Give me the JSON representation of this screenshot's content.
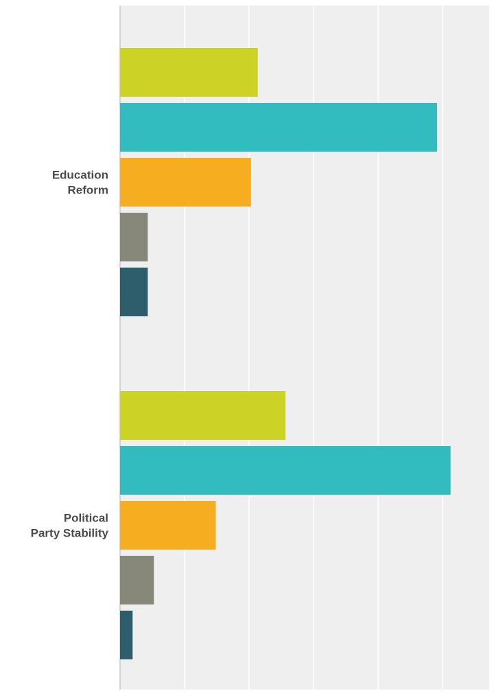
{
  "chart_data": {
    "type": "bar",
    "orientation": "horizontal",
    "title": "",
    "xlabel": "",
    "ylabel": "",
    "grid": true,
    "xlim": [
      0,
      1
    ],
    "categories": [
      {
        "label_lines": [
          "Education",
          "Reform"
        ]
      },
      {
        "label_lines": [
          "Political",
          "Party Stability"
        ]
      }
    ],
    "series": [
      {
        "color": "#cdd325",
        "values": [
          0.427,
          0.513
        ]
      },
      {
        "color": "#33bcbf",
        "values": [
          0.983,
          1.025
        ]
      },
      {
        "color": "#f6ad1f",
        "values": [
          0.406,
          0.297
        ]
      },
      {
        "color": "#87877a",
        "values": [
          0.086,
          0.105
        ]
      },
      {
        "color": "#2e5e6b",
        "values": [
          0.086,
          0.039
        ]
      }
    ]
  }
}
